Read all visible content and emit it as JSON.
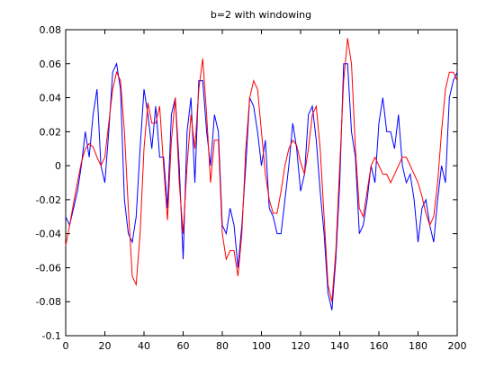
{
  "chart_data": {
    "type": "line",
    "title": "b=2 with windowing",
    "x": [
      0,
      2,
      4,
      6,
      8,
      10,
      12,
      14,
      16,
      18,
      20,
      22,
      24,
      26,
      28,
      30,
      32,
      34,
      36,
      38,
      40,
      42,
      44,
      46,
      48,
      50,
      52,
      54,
      56,
      58,
      60,
      62,
      64,
      66,
      68,
      70,
      72,
      74,
      76,
      78,
      80,
      82,
      84,
      86,
      88,
      90,
      92,
      94,
      96,
      98,
      100,
      102,
      104,
      106,
      108,
      110,
      112,
      114,
      116,
      118,
      120,
      122,
      124,
      126,
      128,
      130,
      132,
      134,
      136,
      138,
      140,
      142,
      144,
      146,
      148,
      150,
      152,
      154,
      156,
      158,
      160,
      162,
      164,
      166,
      168,
      170,
      172,
      174,
      176,
      178,
      180,
      182,
      184,
      186,
      188,
      190,
      192,
      194,
      196,
      198,
      200
    ],
    "series": [
      {
        "color": "#0000ff",
        "values": [
          -0.03,
          -0.035,
          -0.025,
          -0.015,
          0.0,
          0.02,
          0.005,
          0.03,
          0.045,
          0.0,
          -0.01,
          0.02,
          0.055,
          0.06,
          0.045,
          -0.02,
          -0.04,
          -0.045,
          -0.03,
          0.01,
          0.045,
          0.03,
          0.01,
          0.035,
          0.005,
          0.005,
          -0.025,
          0.03,
          0.04,
          0.0,
          -0.055,
          0.02,
          0.04,
          -0.01,
          0.05,
          0.05,
          0.02,
          0.0,
          0.03,
          0.02,
          -0.035,
          -0.04,
          -0.025,
          -0.035,
          -0.06,
          -0.035,
          0.0,
          0.04,
          0.035,
          0.02,
          0.0,
          0.015,
          -0.025,
          -0.03,
          -0.04,
          -0.04,
          -0.02,
          0.0,
          0.025,
          0.01,
          -0.015,
          -0.005,
          0.03,
          0.035,
          0.015,
          -0.015,
          -0.04,
          -0.075,
          -0.085,
          -0.055,
          -0.01,
          0.06,
          0.06,
          0.02,
          0.005,
          -0.04,
          -0.035,
          -0.02,
          0.0,
          -0.01,
          0.025,
          0.04,
          0.02,
          0.02,
          0.01,
          0.03,
          0.0,
          -0.01,
          -0.005,
          -0.02,
          -0.045,
          -0.025,
          -0.02,
          -0.035,
          -0.045,
          -0.02,
          0.0,
          -0.01,
          0.04,
          0.05,
          0.055
        ]
      },
      {
        "color": "#ff0000",
        "values": [
          -0.047,
          -0.035,
          -0.022,
          -0.01,
          0.002,
          0.01,
          0.013,
          0.011,
          0.005,
          0.0,
          0.005,
          0.025,
          0.045,
          0.055,
          0.05,
          0.02,
          -0.025,
          -0.065,
          -0.07,
          -0.04,
          0.01,
          0.037,
          0.025,
          0.025,
          0.035,
          0.0,
          -0.032,
          0.015,
          0.04,
          -0.01,
          -0.04,
          0.0,
          0.03,
          0.01,
          0.045,
          0.063,
          0.03,
          -0.01,
          0.015,
          0.015,
          -0.04,
          -0.055,
          -0.05,
          -0.05,
          -0.065,
          -0.04,
          0.01,
          0.04,
          0.05,
          0.045,
          0.02,
          -0.005,
          -0.02,
          -0.028,
          -0.028,
          -0.015,
          0.0,
          0.01,
          0.015,
          0.012,
          0.002,
          -0.005,
          0.01,
          0.03,
          0.035,
          0.01,
          -0.03,
          -0.07,
          -0.08,
          -0.05,
          0.0,
          0.05,
          0.075,
          0.06,
          0.01,
          -0.025,
          -0.03,
          -0.015,
          0.0,
          0.005,
          0.0,
          -0.005,
          -0.005,
          -0.01,
          -0.005,
          0.0,
          0.005,
          0.005,
          0.0,
          -0.005,
          -0.01,
          -0.018,
          -0.028,
          -0.035,
          -0.03,
          -0.01,
          0.02,
          0.045,
          0.055,
          0.055,
          0.05
        ]
      }
    ],
    "xlim": [
      0,
      200
    ],
    "xticks": [
      0,
      20,
      40,
      60,
      80,
      100,
      120,
      140,
      160,
      180,
      200
    ],
    "ylim": [
      -0.1,
      0.08
    ],
    "yticks": [
      -0.1,
      -0.08,
      -0.06,
      -0.04,
      -0.02,
      0,
      0.02,
      0.04,
      0.06,
      0.08
    ]
  }
}
